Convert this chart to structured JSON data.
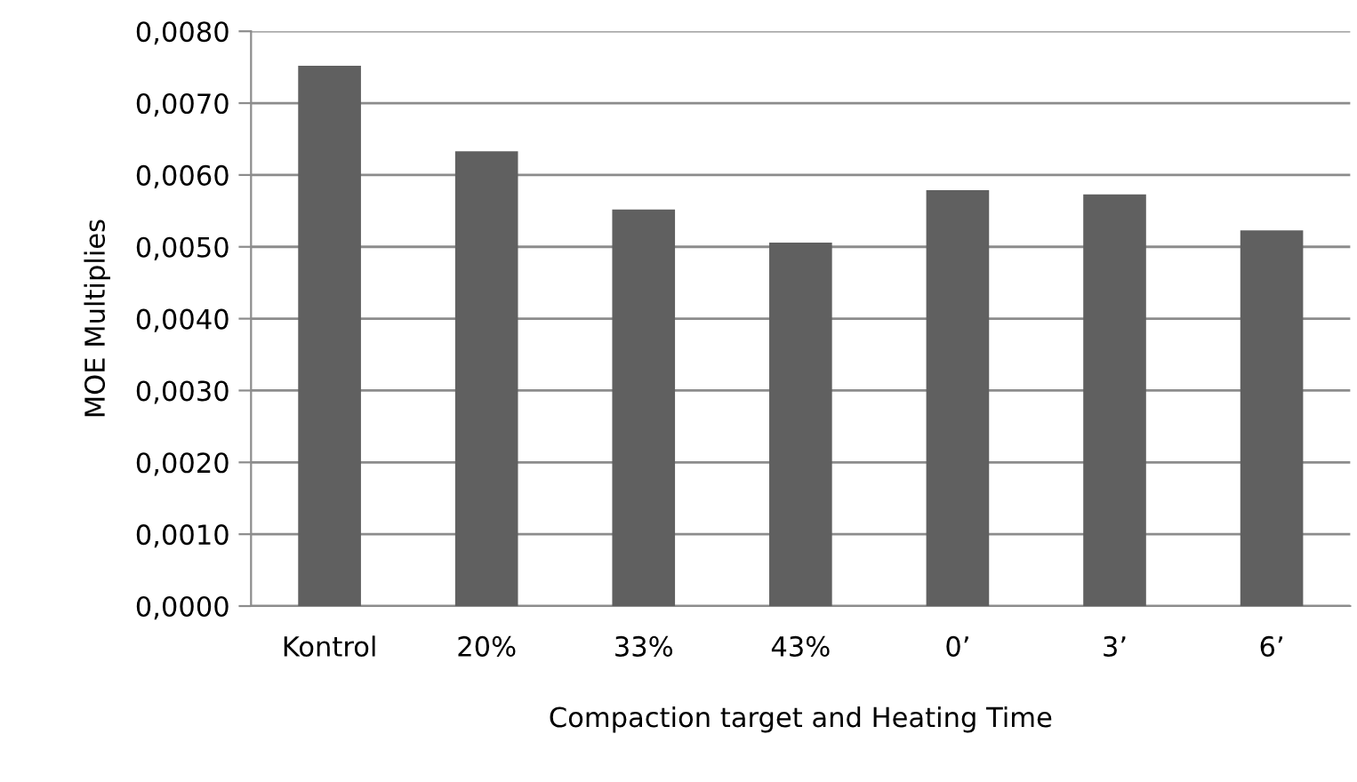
{
  "chart_data": {
    "type": "bar",
    "xlabel": "Compaction target and Heating Time",
    "ylabel": "MOE Multiplies",
    "categories": [
      "Kontrol",
      "20%",
      "33%",
      "43%",
      "0’",
      "3’",
      "6’"
    ],
    "values": [
      0.00752,
      0.00633,
      0.00552,
      0.00506,
      0.00579,
      0.00573,
      0.00523
    ],
    "color": "#606060",
    "ylim": [
      0,
      0.008
    ],
    "yticks": [
      {
        "value": 0,
        "label": "0,0000"
      },
      {
        "value": 0.001,
        "label": "0,0010"
      },
      {
        "value": 0.002,
        "label": "0,0020"
      },
      {
        "value": 0.003,
        "label": "0,0030"
      },
      {
        "value": 0.004,
        "label": "0,0040"
      },
      {
        "value": 0.005,
        "label": "0,0050"
      },
      {
        "value": 0.006,
        "label": "0,0060"
      },
      {
        "value": 0.007,
        "label": "0,0070"
      },
      {
        "value": 0.008,
        "label": "0,0080"
      }
    ],
    "grid": "y"
  }
}
